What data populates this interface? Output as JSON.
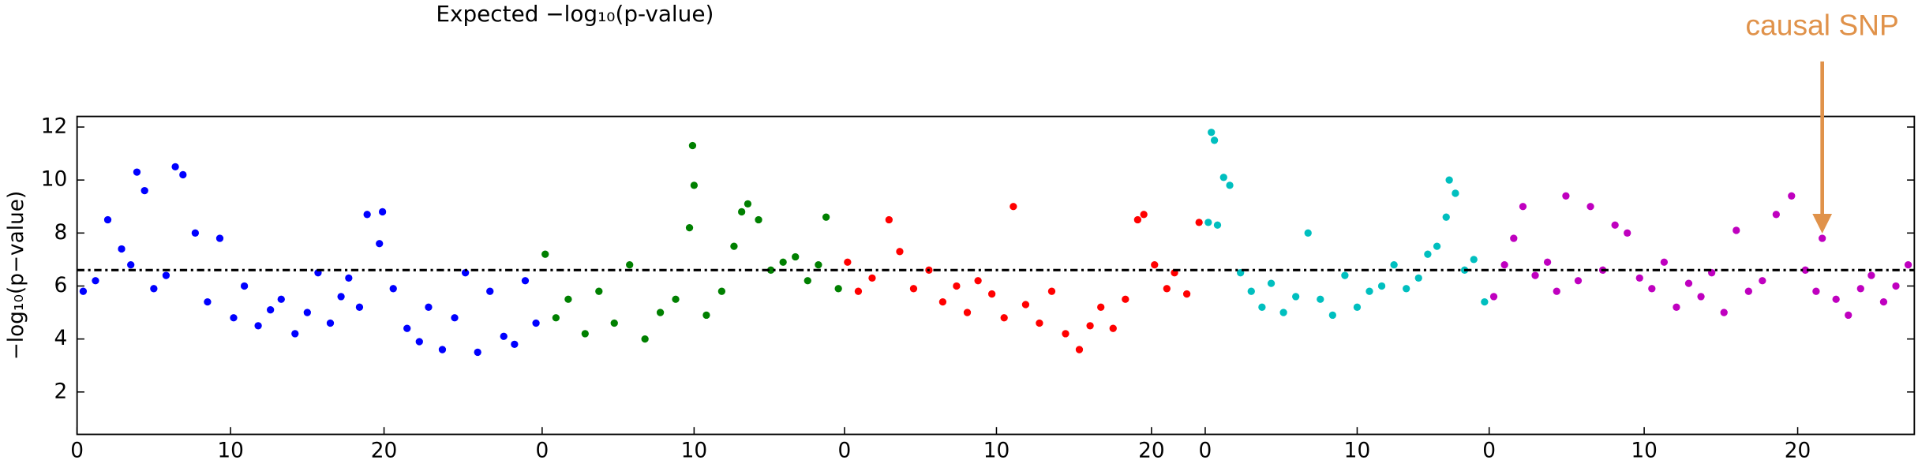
{
  "chart_data": {
    "type": "scatter",
    "title": "Expected −log₁₀(p-value)",
    "y_label": "−log₁₀(p−value)",
    "xlim": [
      0,
      119.7
    ],
    "ylim": [
      0.4,
      12.4
    ],
    "yticks": [
      2,
      4,
      6,
      8,
      10,
      12
    ],
    "xticks": [
      {
        "value": 0,
        "label": "0"
      },
      {
        "value": 10,
        "label": "10"
      },
      {
        "value": 20,
        "label": "20"
      },
      {
        "value": 30.3,
        "label": "0"
      },
      {
        "value": 40.2,
        "label": "10"
      },
      {
        "value": 50.0,
        "label": "0"
      },
      {
        "value": 59.9,
        "label": "10"
      },
      {
        "value": 70.0,
        "label": "20"
      },
      {
        "value": 73.5,
        "label": "0"
      },
      {
        "value": 83.4,
        "label": "10"
      },
      {
        "value": 92.0,
        "label": "0"
      },
      {
        "value": 102.1,
        "label": "10"
      },
      {
        "value": 112.1,
        "label": "20"
      }
    ],
    "threshold": 6.6,
    "annotation": {
      "text": "causal SNP",
      "x": 113.7,
      "y": 7.8,
      "color": "#e0924a"
    },
    "series": [
      {
        "color": "#0000ff",
        "x": [
          0.4,
          1.2,
          2.0,
          2.9,
          3.5,
          3.9,
          4.4,
          5.0,
          5.8,
          6.4,
          6.9,
          7.7,
          8.5,
          9.3,
          10.2,
          10.9,
          11.8,
          12.6,
          13.3,
          14.2,
          15.0,
          15.7,
          16.5,
          17.2,
          17.7,
          18.4,
          18.9,
          19.7,
          19.9,
          20.6,
          21.5,
          22.3,
          22.9,
          23.8,
          24.6,
          25.3,
          26.1,
          26.9,
          27.8,
          28.5,
          29.2,
          29.9
        ],
        "values": [
          5.8,
          6.2,
          8.5,
          7.4,
          6.8,
          10.3,
          9.6,
          5.9,
          6.4,
          10.5,
          10.2,
          8.0,
          5.4,
          7.8,
          4.8,
          6.0,
          4.5,
          5.1,
          5.5,
          4.2,
          5.0,
          6.5,
          4.6,
          5.6,
          6.3,
          5.2,
          8.7,
          7.6,
          8.8,
          5.9,
          4.4,
          3.9,
          5.2,
          3.6,
          4.8,
          6.5,
          3.5,
          5.8,
          4.1,
          3.8,
          6.2,
          4.6
        ]
      },
      {
        "color": "#008000",
        "x": [
          30.5,
          31.2,
          32.0,
          33.1,
          34.0,
          35.0,
          36.0,
          37.0,
          38.0,
          39.0,
          39.9,
          40.1,
          40.2,
          41.0,
          42.0,
          42.8,
          43.3,
          43.7,
          44.4,
          45.2,
          46.0,
          46.8,
          47.6,
          48.3,
          48.8,
          49.6
        ],
        "values": [
          7.2,
          4.8,
          5.5,
          4.2,
          5.8,
          4.6,
          6.8,
          4.0,
          5.0,
          5.5,
          8.2,
          11.3,
          9.8,
          4.9,
          5.8,
          7.5,
          8.8,
          9.1,
          8.5,
          6.6,
          6.9,
          7.1,
          6.2,
          6.8,
          8.6,
          5.9
        ]
      },
      {
        "color": "#ff0000",
        "x": [
          50.2,
          50.9,
          51.8,
          52.9,
          53.6,
          54.5,
          55.5,
          56.4,
          57.3,
          58.0,
          58.7,
          59.6,
          60.4,
          61.0,
          61.8,
          62.7,
          63.5,
          64.4,
          65.3,
          66.0,
          66.7,
          67.5,
          68.3,
          69.1,
          69.5,
          70.2,
          71.0,
          71.5,
          72.3,
          73.1
        ],
        "values": [
          6.9,
          5.8,
          6.3,
          8.5,
          7.3,
          5.9,
          6.6,
          5.4,
          6.0,
          5.0,
          6.2,
          5.7,
          4.8,
          9.0,
          5.3,
          4.6,
          5.8,
          4.2,
          3.6,
          4.5,
          5.2,
          4.4,
          5.5,
          8.5,
          8.7,
          6.8,
          5.9,
          6.5,
          5.7,
          8.4
        ]
      },
      {
        "color": "#00bfbf",
        "x": [
          73.7,
          73.9,
          74.1,
          74.3,
          74.7,
          75.1,
          75.8,
          76.5,
          77.2,
          77.8,
          78.6,
          79.4,
          80.2,
          81.0,
          81.8,
          82.6,
          83.4,
          84.2,
          85.0,
          85.8,
          86.6,
          87.4,
          88.0,
          88.6,
          89.2,
          89.4,
          89.8,
          90.4,
          91.0,
          91.7
        ],
        "values": [
          8.4,
          11.8,
          11.5,
          8.3,
          10.1,
          9.8,
          6.5,
          5.8,
          5.2,
          6.1,
          5.0,
          5.6,
          8.0,
          5.5,
          4.9,
          6.4,
          5.2,
          5.8,
          6.0,
          6.8,
          5.9,
          6.3,
          7.2,
          7.5,
          8.6,
          10.0,
          9.5,
          6.6,
          7.0,
          5.4
        ]
      },
      {
        "color": "#bf00bf",
        "x": [
          92.3,
          93.0,
          93.6,
          94.2,
          95.0,
          95.8,
          96.4,
          97.0,
          97.8,
          98.6,
          99.4,
          100.2,
          101.0,
          101.8,
          102.6,
          103.4,
          104.2,
          105.0,
          105.8,
          106.5,
          107.3,
          108.1,
          108.9,
          109.8,
          110.7,
          111.7,
          112.6,
          113.3,
          113.7,
          114.6,
          115.4,
          116.2,
          116.9,
          117.7,
          118.5,
          119.3
        ],
        "values": [
          5.6,
          6.8,
          7.8,
          9.0,
          6.4,
          6.9,
          5.8,
          9.4,
          6.2,
          9.0,
          6.6,
          8.3,
          8.0,
          6.3,
          5.9,
          6.9,
          5.2,
          6.1,
          5.6,
          6.5,
          5.0,
          8.1,
          5.8,
          6.2,
          8.7,
          9.4,
          6.6,
          5.8,
          7.8,
          5.5,
          4.9,
          5.9,
          6.4,
          5.4,
          6.0,
          6.8
        ]
      }
    ]
  }
}
